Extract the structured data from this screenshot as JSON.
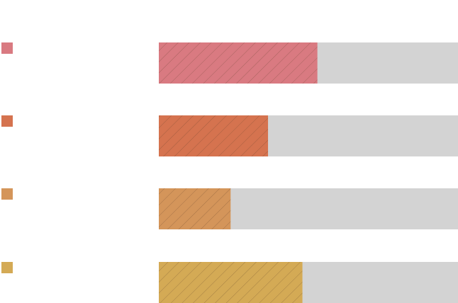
{
  "chart_data": {
    "type": "bar",
    "orientation": "horizontal",
    "style": "progress-bars",
    "categories": [
      "",
      "",
      "",
      ""
    ],
    "values": [
      0.53,
      0.365,
      0.24,
      0.48
    ],
    "xlim": [
      0,
      1
    ],
    "track_color": "#d3d3d3",
    "bar_colors": [
      "#d97a81",
      "#d5734f",
      "#d4955a",
      "#d4aa55"
    ],
    "pattern": "diagonal-hatch",
    "legend": "left",
    "grid": false
  }
}
